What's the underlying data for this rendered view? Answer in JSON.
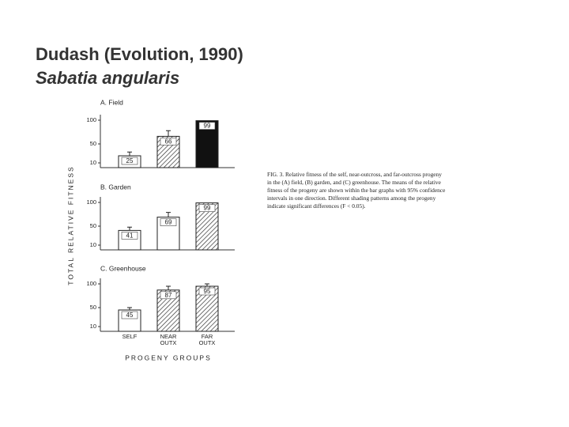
{
  "slide": {
    "title": "Dudash (Evolution, 1990)",
    "title_species": "Sabatia angularis"
  },
  "caption": "FIG. 3. Relative fitness of the self, near-outcross, and far-outcross progeny in the (A) field, (B) garden, and (C) greenhouse. The means of the relative fitness of the progeny are shown within the bar graphs with 95% confidence intervals in one direction. Different shading patterns among the progeny indicate significant differences (F < 0.05).",
  "y_label": "TOTAL RELATIVE FITNESS",
  "x_label": "PROGENY GROUPS",
  "chart_data": [
    {
      "type": "bar",
      "title": "A. Field",
      "values": [
        25,
        66,
        99
      ],
      "errors": [
        8,
        12,
        null
      ],
      "fills": [
        "white",
        "hatch",
        "black"
      ],
      "ylim": [
        0,
        105
      ],
      "yticks": [
        10,
        50,
        100
      ]
    },
    {
      "type": "bar",
      "title": "B. Garden",
      "values": [
        41,
        69,
        99
      ],
      "errors": [
        7,
        10,
        null
      ],
      "fills": [
        "white",
        "white",
        "hatch"
      ],
      "ylim": [
        0,
        105
      ],
      "yticks": [
        10,
        50,
        100
      ]
    },
    {
      "type": "bar",
      "title": "C. Greenhouse",
      "categories": [
        "SELF",
        "NEAR OUTX",
        "FAR OUTX"
      ],
      "values": [
        45,
        87,
        95
      ],
      "errors": [
        5,
        8,
        5
      ],
      "fills": [
        "white",
        "hatch",
        "hatch"
      ],
      "ylim": [
        0,
        105
      ],
      "yticks": [
        10,
        50,
        100
      ]
    }
  ]
}
